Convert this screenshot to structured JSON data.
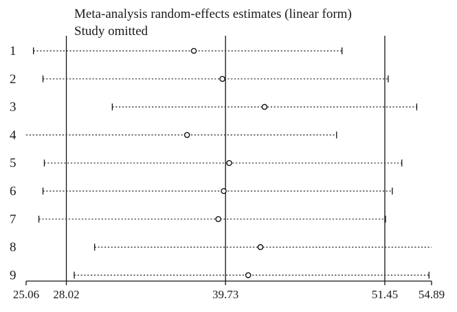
{
  "chart_data": {
    "type": "forest",
    "title": "Meta-analysis random-effects estimates (linear form)",
    "subtitle": "Study omitted",
    "xlim": [
      25.06,
      54.89
    ],
    "x_ticks": [
      25.06,
      28.02,
      39.73,
      51.45,
      54.89
    ],
    "reference_lines": [
      28.02,
      39.73,
      51.45
    ],
    "studies": [
      {
        "label": "1",
        "estimate": 37.4,
        "lower": 25.6,
        "upper": 48.3
      },
      {
        "label": "2",
        "estimate": 39.5,
        "lower": 26.3,
        "upper": 51.7
      },
      {
        "label": "3",
        "estimate": 42.6,
        "lower": 31.4,
        "upper": 53.8
      },
      {
        "label": "4",
        "estimate": 36.9,
        "lower": 25.06,
        "upper": 47.9
      },
      {
        "label": "5",
        "estimate": 40.0,
        "lower": 26.4,
        "upper": 52.7
      },
      {
        "label": "6",
        "estimate": 39.6,
        "lower": 26.3,
        "upper": 52.0
      },
      {
        "label": "7",
        "estimate": 39.2,
        "lower": 26.0,
        "upper": 51.5
      },
      {
        "label": "8",
        "estimate": 42.3,
        "lower": 30.1,
        "upper": 54.89
      },
      {
        "label": "9",
        "estimate": 41.4,
        "lower": 28.6,
        "upper": 54.7
      }
    ]
  }
}
